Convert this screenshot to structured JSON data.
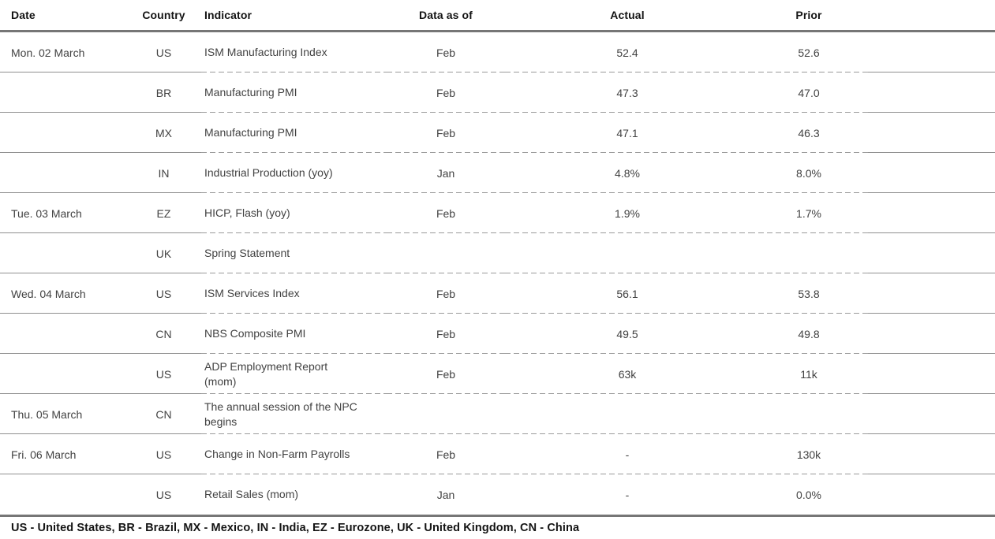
{
  "table": {
    "columns": {
      "date": "Date",
      "country": "Country",
      "indicator": "Indicator",
      "data_as_of": "Data as of",
      "actual": "Actual",
      "prior": "Prior"
    },
    "rows": [
      {
        "date": "Mon. 02 March",
        "country": "US",
        "indicator": "ISM Manufacturing Index",
        "data_as_of": "Feb",
        "actual": "52.4",
        "prior": "52.6"
      },
      {
        "date": "",
        "country": "BR",
        "indicator": "Manufacturing PMI",
        "data_as_of": "Feb",
        "actual": "47.3",
        "prior": "47.0"
      },
      {
        "date": "",
        "country": "MX",
        "indicator": "Manufacturing PMI",
        "data_as_of": "Feb",
        "actual": "47.1",
        "prior": "46.3"
      },
      {
        "date": "",
        "country": "IN",
        "indicator": "Industrial Production (yoy)",
        "data_as_of": "Jan",
        "actual": "4.8%",
        "prior": "8.0%"
      },
      {
        "date": "Tue. 03 March",
        "country": "EZ",
        "indicator": "HICP, Flash (yoy)",
        "data_as_of": "Feb",
        "actual": "1.9%",
        "prior": "1.7%"
      },
      {
        "date": "",
        "country": "UK",
        "indicator": "Spring Statement",
        "data_as_of": "",
        "actual": "",
        "prior": ""
      },
      {
        "date": "Wed. 04 March",
        "country": "US",
        "indicator": "ISM Services Index",
        "data_as_of": "Feb",
        "actual": "56.1",
        "prior": "53.8"
      },
      {
        "date": "",
        "country": "CN",
        "indicator": "NBS Composite PMI",
        "data_as_of": "Feb",
        "actual": "49.5",
        "prior": "49.8"
      },
      {
        "date": "",
        "country": "US",
        "indicator": "ADP Employment Report\n(mom)",
        "data_as_of": "Feb",
        "actual": "63k",
        "prior": "11k"
      },
      {
        "date": "Thu. 05 March",
        "country": "CN",
        "indicator": "The annual session of the NPC\nbegins",
        "data_as_of": "",
        "actual": "",
        "prior": ""
      },
      {
        "date": "Fri. 06 March",
        "country": "US",
        "indicator": "Change in Non-Farm Payrolls",
        "data_as_of": "Feb",
        "actual": "-",
        "prior": "130k"
      },
      {
        "date": "",
        "country": "US",
        "indicator": "Retail Sales (mom)",
        "data_as_of": "Jan",
        "actual": "-",
        "prior": "0.0%"
      }
    ],
    "legend": "US - United States, BR - Brazil, MX - Mexico, IN - India, EZ - Eurozone, UK - United Kingdom, CN - China"
  },
  "colors": {
    "background": "#ffffff",
    "thick_rule": "#767676",
    "solid_separator": "#8f8f8f",
    "dashed_separator": "#9a9a9a",
    "header_text": "#141414",
    "body_text": "#424242",
    "legend_text": "#141414"
  }
}
